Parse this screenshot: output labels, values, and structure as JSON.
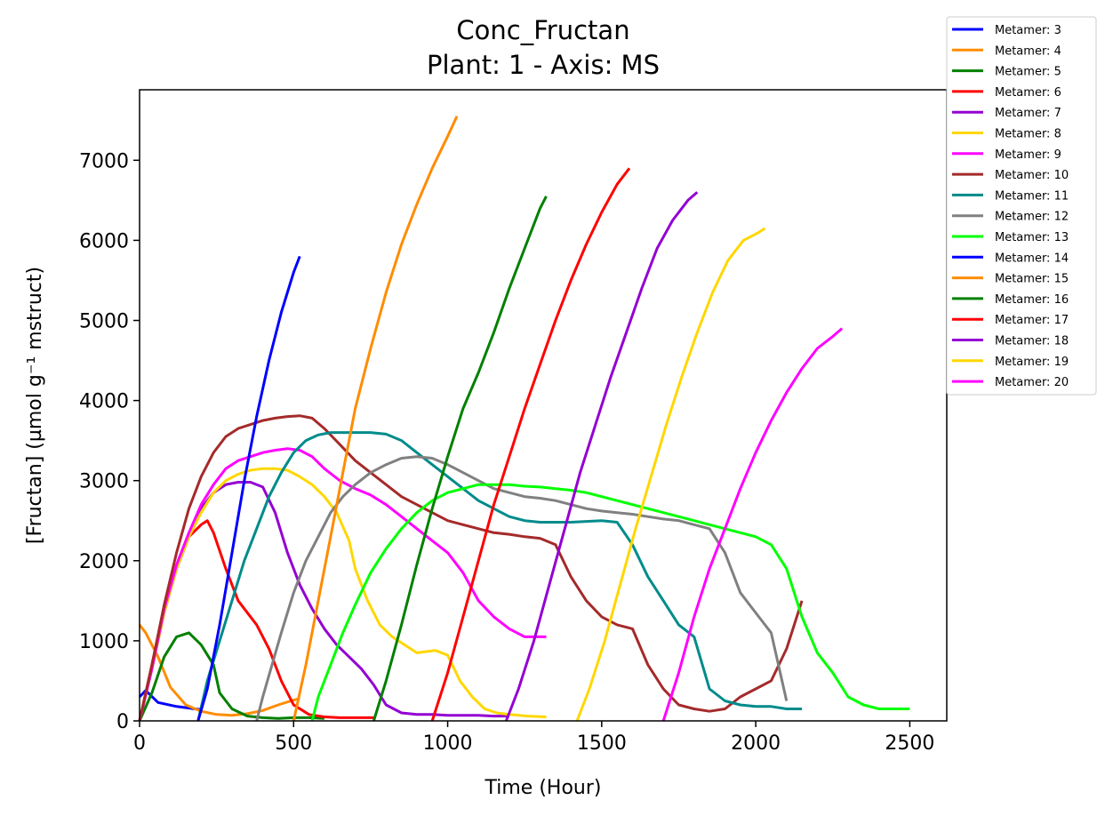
{
  "chart_data": {
    "type": "line",
    "title": "Conc_Fructan",
    "subtitle": "Plant: 1 - Axis: MS",
    "xlabel": "Time (Hour)",
    "ylabel": "[Fructan] (µmol g⁻¹ mstruct)",
    "xlim": [
      0,
      2620
    ],
    "ylim": [
      0,
      7880
    ],
    "xticks": [
      0,
      500,
      1000,
      1500,
      2000,
      2500
    ],
    "yticks": [
      0,
      1000,
      2000,
      3000,
      4000,
      5000,
      6000,
      7000
    ],
    "grid": false,
    "legend_position": "outside-top-right",
    "series": [
      {
        "name": "Metamer: 3",
        "color": "#0000ff",
        "x": [
          0,
          20,
          60,
          120,
          180,
          200
        ],
        "y": [
          300,
          380,
          230,
          180,
          150,
          140
        ]
      },
      {
        "name": "Metamer: 4",
        "color": "#ff8c00",
        "x": [
          0,
          20,
          60,
          100,
          150,
          200,
          250,
          300,
          350,
          400,
          450,
          500,
          520
        ],
        "y": [
          1200,
          1100,
          800,
          420,
          200,
          120,
          80,
          70,
          90,
          130,
          200,
          260,
          280
        ]
      },
      {
        "name": "Metamer: 5",
        "color": "#008000",
        "x": [
          0,
          40,
          80,
          120,
          160,
          200,
          240,
          260,
          300,
          350,
          400,
          450,
          500,
          550,
          600
        ],
        "y": [
          0,
          350,
          800,
          1050,
          1100,
          950,
          700,
          350,
          150,
          60,
          40,
          30,
          40,
          40,
          30
        ]
      },
      {
        "name": "Metamer: 6",
        "color": "#ff0000",
        "x": [
          0,
          40,
          80,
          120,
          160,
          200,
          220,
          240,
          280,
          320,
          380,
          420,
          460,
          500,
          550,
          600,
          650,
          700,
          760
        ],
        "y": [
          0,
          700,
          1400,
          1900,
          2300,
          2450,
          2500,
          2350,
          1900,
          1500,
          1200,
          900,
          500,
          200,
          80,
          50,
          40,
          40,
          40
        ]
      },
      {
        "name": "Metamer: 7",
        "color": "#9400d3",
        "x": [
          0,
          40,
          80,
          120,
          160,
          200,
          240,
          280,
          320,
          360,
          400,
          440,
          480,
          520,
          560,
          600,
          640,
          680,
          720,
          760,
          800,
          850,
          900,
          950,
          1000,
          1050,
          1100,
          1150,
          1200
        ],
        "y": [
          0,
          650,
          1350,
          1900,
          2300,
          2650,
          2850,
          2950,
          2980,
          2980,
          2920,
          2600,
          2100,
          1700,
          1400,
          1150,
          950,
          800,
          650,
          450,
          200,
          100,
          80,
          80,
          70,
          70,
          70,
          60,
          60
        ]
      },
      {
        "name": "Metamer: 8",
        "color": "#ffd700",
        "x": [
          0,
          40,
          80,
          120,
          160,
          200,
          240,
          280,
          320,
          360,
          400,
          440,
          480,
          520,
          560,
          600,
          640,
          680,
          700,
          740,
          780,
          820,
          860,
          900,
          960,
          1000,
          1040,
          1080,
          1120,
          1160,
          1200,
          1260,
          1320
        ],
        "y": [
          0,
          650,
          1350,
          1900,
          2300,
          2600,
          2850,
          3000,
          3080,
          3130,
          3150,
          3150,
          3130,
          3050,
          2950,
          2800,
          2600,
          2250,
          1900,
          1500,
          1200,
          1050,
          950,
          850,
          880,
          820,
          500,
          300,
          150,
          100,
          80,
          60,
          50
        ]
      },
      {
        "name": "Metamer: 9",
        "color": "#ff00ff",
        "x": [
          0,
          40,
          80,
          120,
          160,
          200,
          240,
          280,
          320,
          360,
          400,
          440,
          480,
          520,
          560,
          600,
          650,
          700,
          750,
          800,
          850,
          900,
          950,
          1000,
          1050,
          1100,
          1150,
          1200,
          1250,
          1320
        ],
        "y": [
          0,
          650,
          1400,
          1950,
          2350,
          2700,
          2950,
          3150,
          3250,
          3300,
          3350,
          3380,
          3400,
          3380,
          3300,
          3150,
          3000,
          2900,
          2820,
          2700,
          2550,
          2400,
          2250,
          2100,
          1850,
          1500,
          1300,
          1150,
          1050,
          1050
        ]
      },
      {
        "name": "Metamer: 10",
        "color": "#a52a2a",
        "x": [
          0,
          40,
          80,
          120,
          160,
          200,
          240,
          280,
          320,
          360,
          400,
          440,
          480,
          520,
          560,
          600,
          650,
          700,
          750,
          800,
          850,
          900,
          950,
          1000,
          1050,
          1100,
          1150,
          1200,
          1250,
          1300,
          1350,
          1400,
          1450,
          1500,
          1550,
          1600,
          1650,
          1700,
          1750,
          1800,
          1850,
          1900,
          1950,
          2000,
          2050,
          2100,
          2150
        ],
        "y": [
          0,
          700,
          1450,
          2100,
          2650,
          3050,
          3350,
          3550,
          3650,
          3700,
          3750,
          3780,
          3800,
          3810,
          3780,
          3650,
          3450,
          3250,
          3100,
          2950,
          2800,
          2700,
          2600,
          2500,
          2450,
          2400,
          2350,
          2330,
          2300,
          2280,
          2200,
          1800,
          1500,
          1300,
          1200,
          1150,
          700,
          400,
          200,
          150,
          120,
          150,
          300,
          400,
          500,
          900,
          1500
        ]
      },
      {
        "name": "Metamer: 11",
        "color": "#008b8b",
        "x": [
          190,
          220,
          260,
          300,
          340,
          380,
          420,
          460,
          500,
          540,
          580,
          620,
          660,
          700,
          750,
          800,
          850,
          900,
          950,
          1000,
          1050,
          1100,
          1150,
          1200,
          1250,
          1300,
          1350,
          1400,
          1450,
          1500,
          1550,
          1600,
          1650,
          1700,
          1750,
          1800,
          1850,
          1900,
          1950,
          2000,
          2050,
          2100,
          2150
        ],
        "y": [
          0,
          500,
          1000,
          1500,
          2000,
          2400,
          2800,
          3100,
          3350,
          3500,
          3570,
          3600,
          3600,
          3600,
          3600,
          3580,
          3500,
          3350,
          3200,
          3050,
          2900,
          2750,
          2650,
          2550,
          2500,
          2480,
          2480,
          2480,
          2490,
          2500,
          2480,
          2200,
          1800,
          1500,
          1200,
          1050,
          400,
          250,
          200,
          180,
          180,
          150,
          150
        ]
      },
      {
        "name": "Metamer: 12",
        "color": "#808080",
        "x": [
          380,
          400,
          430,
          460,
          500,
          540,
          580,
          620,
          660,
          700,
          750,
          800,
          850,
          900,
          950,
          1000,
          1050,
          1100,
          1150,
          1200,
          1250,
          1300,
          1350,
          1400,
          1450,
          1500,
          1550,
          1600,
          1650,
          1700,
          1750,
          1800,
          1850,
          1900,
          1950,
          2000,
          2050,
          2100
        ],
        "y": [
          0,
          300,
          700,
          1100,
          1600,
          2000,
          2300,
          2600,
          2800,
          2950,
          3100,
          3200,
          3280,
          3300,
          3280,
          3200,
          3100,
          3000,
          2900,
          2850,
          2800,
          2780,
          2750,
          2700,
          2650,
          2620,
          2600,
          2580,
          2550,
          2520,
          2500,
          2450,
          2400,
          2100,
          1600,
          1350,
          1100,
          250
        ]
      },
      {
        "name": "Metamer: 13",
        "color": "#00ff00",
        "x": [
          560,
          580,
          620,
          660,
          700,
          750,
          800,
          850,
          900,
          950,
          1000,
          1050,
          1100,
          1150,
          1200,
          1250,
          1300,
          1350,
          1400,
          1450,
          1500,
          1550,
          1600,
          1650,
          1700,
          1750,
          1800,
          1850,
          1900,
          1950,
          2000,
          2050,
          2100,
          2150,
          2200,
          2250,
          2300,
          2350,
          2400,
          2450,
          2500
        ],
        "y": [
          0,
          300,
          700,
          1100,
          1450,
          1850,
          2150,
          2400,
          2600,
          2750,
          2850,
          2900,
          2950,
          2950,
          2950,
          2930,
          2920,
          2900,
          2880,
          2850,
          2800,
          2750,
          2700,
          2650,
          2600,
          2550,
          2500,
          2450,
          2400,
          2350,
          2300,
          2200,
          1900,
          1300,
          850,
          600,
          300,
          200,
          150,
          150,
          150
        ]
      },
      {
        "name": "Metamer: 14",
        "color": "#0000ff",
        "x": [
          190,
          220,
          260,
          300,
          340,
          380,
          420,
          460,
          500,
          520
        ],
        "y": [
          0,
          400,
          1200,
          2100,
          3000,
          3800,
          4500,
          5100,
          5600,
          5800
        ]
      },
      {
        "name": "Metamer: 15",
        "color": "#ff8c00",
        "x": [
          500,
          540,
          580,
          620,
          660,
          700,
          750,
          800,
          850,
          900,
          950,
          1000,
          1030
        ],
        "y": [
          0,
          700,
          1500,
          2300,
          3100,
          3900,
          4650,
          5350,
          5950,
          6450,
          6900,
          7300,
          7550
        ]
      },
      {
        "name": "Metamer: 16",
        "color": "#008000",
        "x": [
          760,
          800,
          850,
          900,
          950,
          1000,
          1050,
          1100,
          1150,
          1200,
          1250,
          1300,
          1320
        ],
        "y": [
          0,
          500,
          1200,
          1950,
          2650,
          3300,
          3900,
          4350,
          4850,
          5400,
          5900,
          6400,
          6550
        ]
      },
      {
        "name": "Metamer: 17",
        "color": "#ff0000",
        "x": [
          950,
          1000,
          1050,
          1100,
          1150,
          1200,
          1250,
          1300,
          1350,
          1400,
          1450,
          1500,
          1550,
          1590
        ],
        "y": [
          0,
          600,
          1300,
          2000,
          2700,
          3300,
          3900,
          4450,
          5000,
          5500,
          5950,
          6350,
          6700,
          6900
        ]
      },
      {
        "name": "Metamer: 18",
        "color": "#9400d3",
        "x": [
          1190,
          1230,
          1280,
          1330,
          1380,
          1430,
          1480,
          1530,
          1580,
          1630,
          1680,
          1730,
          1780,
          1810
        ],
        "y": [
          0,
          400,
          1000,
          1700,
          2400,
          3100,
          3700,
          4300,
          4850,
          5400,
          5900,
          6250,
          6500,
          6600
        ]
      },
      {
        "name": "Metamer: 19",
        "color": "#ffd700",
        "x": [
          1420,
          1460,
          1510,
          1560,
          1610,
          1660,
          1710,
          1760,
          1810,
          1860,
          1910,
          1960,
          2010,
          2030
        ],
        "y": [
          0,
          400,
          1000,
          1700,
          2400,
          3050,
          3700,
          4300,
          4850,
          5350,
          5750,
          6000,
          6100,
          6150
        ]
      },
      {
        "name": "Metamer: 20",
        "color": "#ff00ff",
        "x": [
          1700,
          1750,
          1800,
          1850,
          1900,
          1950,
          2000,
          2050,
          2100,
          2150,
          2200,
          2250,
          2280
        ],
        "y": [
          0,
          600,
          1300,
          1900,
          2400,
          2900,
          3350,
          3750,
          4100,
          4400,
          4650,
          4800,
          4900
        ]
      }
    ]
  }
}
